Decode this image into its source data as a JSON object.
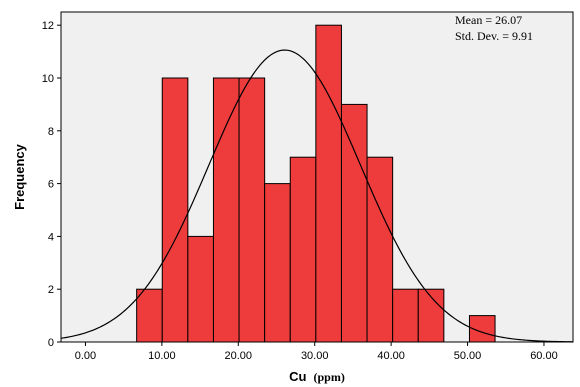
{
  "chart_data": {
    "type": "bar",
    "subtype": "histogram",
    "xlabel_main": "Cu",
    "xlabel_unit": "(ppm)",
    "ylabel": "Frequency",
    "xlim": [
      -3.2,
      63.8
    ],
    "ylim": [
      0,
      12.5
    ],
    "xticks": [
      0,
      10,
      20,
      30,
      40,
      50,
      60
    ],
    "xtick_labels": [
      "0.00",
      "10.00",
      "20.00",
      "30.00",
      "40.00",
      "50.00",
      "60.00"
    ],
    "yticks": [
      0,
      2,
      4,
      6,
      8,
      10,
      12
    ],
    "ytick_labels": [
      "0",
      "2",
      "4",
      "6",
      "8",
      "10",
      "12"
    ],
    "bin_start": 6.7,
    "bin_width": 3.35,
    "values": [
      2,
      10,
      4,
      10,
      10,
      6,
      7,
      12,
      9,
      7,
      2,
      2,
      0,
      1
    ],
    "normal_curve": {
      "mean": 26.07,
      "std": 9.91,
      "n": 82
    },
    "stats": {
      "mean_label": "Mean = 26.07",
      "std_label": "Std. Dev. = 9.91"
    },
    "grid": false,
    "colors": {
      "bar": "#ee3b3b",
      "bar_edge": "#000000",
      "plot_background": "#f0f0f0",
      "curve": "#000000"
    }
  }
}
